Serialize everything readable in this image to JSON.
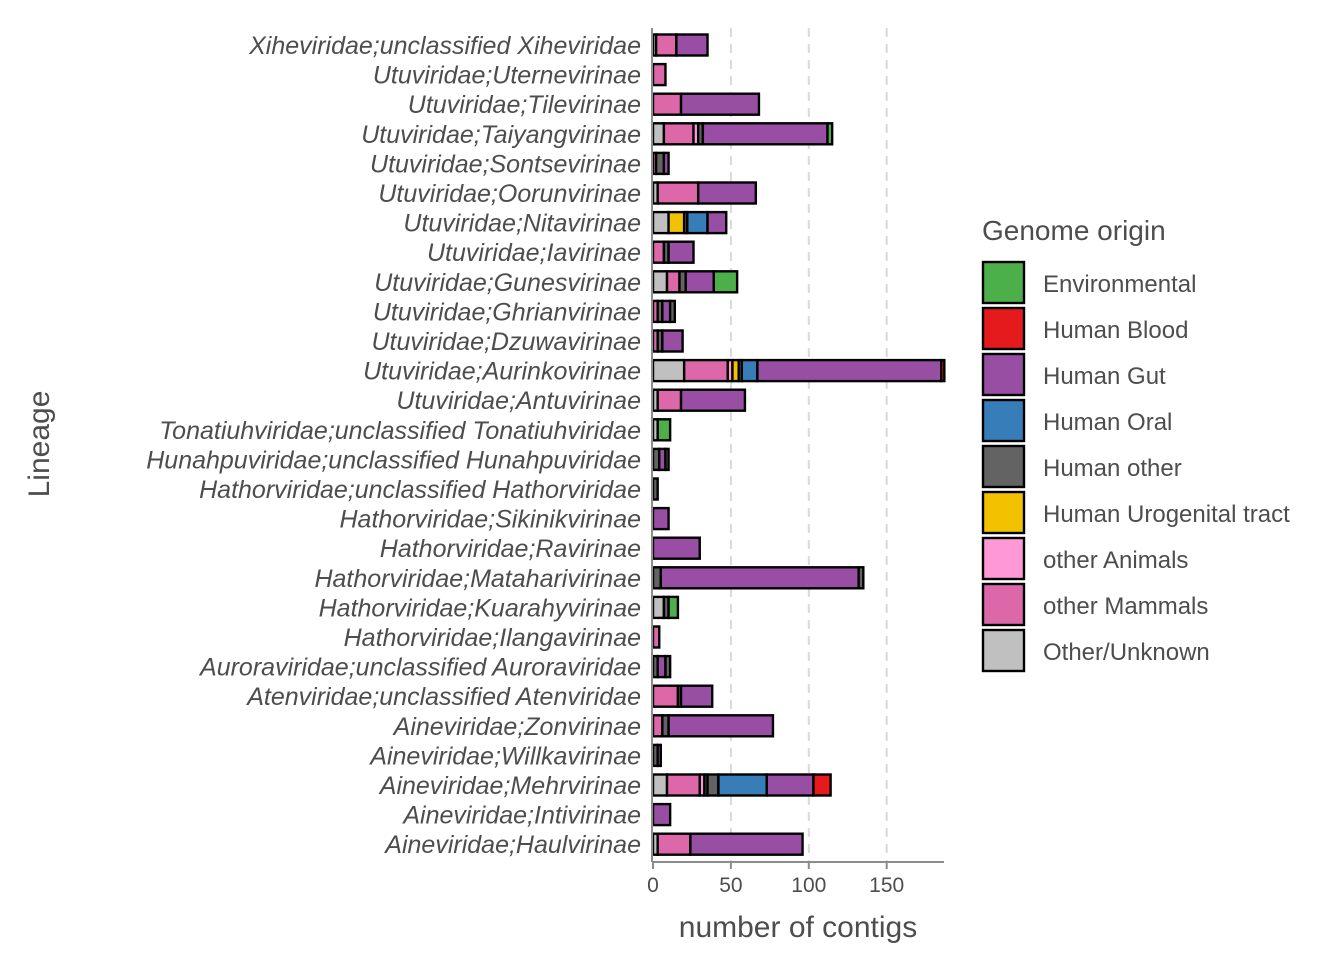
{
  "chart_data": {
    "type": "bar",
    "orientation": "horizontal",
    "stacked": true,
    "xlabel": "number of contigs",
    "ylabel": "Lineage",
    "xlim": [
      0,
      187
    ],
    "xticks": [
      0,
      50,
      100,
      150
    ],
    "grid": "vertical dashed major lines",
    "legend": {
      "title": "Genome origin",
      "position": "right",
      "entries": [
        {
          "name": "Environmental",
          "color": "#4daf4a"
        },
        {
          "name": "Human Blood",
          "color": "#e41a1c"
        },
        {
          "name": "Human Gut",
          "color": "#984ea3"
        },
        {
          "name": "Human Oral",
          "color": "#377eb8"
        },
        {
          "name": "Human other",
          "color": "#636363"
        },
        {
          "name": "Human Urogenital tract",
          "color": "#f2c200"
        },
        {
          "name": "other Animals",
          "color": "#ff99d5"
        },
        {
          "name": "other Mammals",
          "color": "#dc68aa"
        },
        {
          "name": "Other/Unknown",
          "color": "#c0c0c0"
        }
      ]
    },
    "categories": [
      {
        "name": "Xiheviridae;unclassified Xiheviridae",
        "segments": [
          {
            "origin": "Other/Unknown",
            "value": 2
          },
          {
            "origin": "other Mammals",
            "value": 13
          },
          {
            "origin": "Human Gut",
            "value": 20
          }
        ]
      },
      {
        "name": "Utuviridae;Uternevirinae",
        "segments": [
          {
            "origin": "other Mammals",
            "value": 8
          }
        ]
      },
      {
        "name": "Utuviridae;Tilevirinae",
        "segments": [
          {
            "origin": "other Mammals",
            "value": 18
          },
          {
            "origin": "Human Gut",
            "value": 50
          }
        ]
      },
      {
        "name": "Utuviridae;Taiyangvirinae",
        "segments": [
          {
            "origin": "Other/Unknown",
            "value": 7
          },
          {
            "origin": "other Mammals",
            "value": 19
          },
          {
            "origin": "other Animals",
            "value": 3
          },
          {
            "origin": "Human other",
            "value": 3
          },
          {
            "origin": "Human Gut",
            "value": 80
          },
          {
            "origin": "Environmental",
            "value": 3
          }
        ]
      },
      {
        "name": "Utuviridae;Sontsevirinae",
        "segments": [
          {
            "origin": "other Mammals",
            "value": 2
          },
          {
            "origin": "Human other",
            "value": 5
          },
          {
            "origin": "Human Gut",
            "value": 3
          }
        ]
      },
      {
        "name": "Utuviridae;Oorunvirinae",
        "segments": [
          {
            "origin": "Other/Unknown",
            "value": 3
          },
          {
            "origin": "other Mammals",
            "value": 26
          },
          {
            "origin": "Human Gut",
            "value": 37
          }
        ]
      },
      {
        "name": "Utuviridae;Nitavirinae",
        "segments": [
          {
            "origin": "Other/Unknown",
            "value": 10
          },
          {
            "origin": "Human Urogenital tract",
            "value": 10
          },
          {
            "origin": "Human other",
            "value": 2
          },
          {
            "origin": "Human Oral",
            "value": 13
          },
          {
            "origin": "Human Gut",
            "value": 12
          }
        ]
      },
      {
        "name": "Utuviridae;Iavirinae",
        "segments": [
          {
            "origin": "other Mammals",
            "value": 7
          },
          {
            "origin": "Human other",
            "value": 3
          },
          {
            "origin": "Human Gut",
            "value": 16
          }
        ]
      },
      {
        "name": "Utuviridae;Gunesvirinae",
        "segments": [
          {
            "origin": "Other/Unknown",
            "value": 9
          },
          {
            "origin": "other Mammals",
            "value": 8
          },
          {
            "origin": "Human other",
            "value": 4
          },
          {
            "origin": "Human Gut",
            "value": 18
          },
          {
            "origin": "Environmental",
            "value": 15
          }
        ]
      },
      {
        "name": "Utuviridae;Ghrianvirinae",
        "segments": [
          {
            "origin": "other Mammals",
            "value": 3
          },
          {
            "origin": "Human other",
            "value": 3
          },
          {
            "origin": "Human Gut",
            "value": 5
          },
          {
            "origin": "Human other",
            "value": 3
          }
        ]
      },
      {
        "name": "Utuviridae;Dzuwavirinae",
        "segments": [
          {
            "origin": "other Mammals",
            "value": 3
          },
          {
            "origin": "Human other",
            "value": 3
          },
          {
            "origin": "Human Gut",
            "value": 13
          }
        ]
      },
      {
        "name": "Utuviridae;Aurinkovirinae",
        "segments": [
          {
            "origin": "Other/Unknown",
            "value": 20
          },
          {
            "origin": "other Mammals",
            "value": 28
          },
          {
            "origin": "other Animals",
            "value": 3
          },
          {
            "origin": "Human Urogenital tract",
            "value": 4
          },
          {
            "origin": "Human other",
            "value": 2
          },
          {
            "origin": "Human Oral",
            "value": 10
          },
          {
            "origin": "Human Gut",
            "value": 118
          },
          {
            "origin": "Human Blood",
            "value": 2
          }
        ]
      },
      {
        "name": "Utuviridae;Antuvirinae",
        "segments": [
          {
            "origin": "Other/Unknown",
            "value": 3
          },
          {
            "origin": "other Mammals",
            "value": 15
          },
          {
            "origin": "Human Gut",
            "value": 41
          }
        ]
      },
      {
        "name": "Tonatiuhviridae;unclassified Tonatiuhviridae",
        "segments": [
          {
            "origin": "Other/Unknown",
            "value": 3
          },
          {
            "origin": "Environmental",
            "value": 8
          }
        ]
      },
      {
        "name": "Hunahpuviridae;unclassified Hunahpuviridae",
        "segments": [
          {
            "origin": "Human other",
            "value": 4
          },
          {
            "origin": "Human Gut",
            "value": 4
          },
          {
            "origin": "Human other",
            "value": 2
          }
        ]
      },
      {
        "name": "Hathorviridae;unclassified Hathorviridae",
        "segments": [
          {
            "origin": "Human other",
            "value": 3
          }
        ]
      },
      {
        "name": "Hathorviridae;Sikinikvirinae",
        "segments": [
          {
            "origin": "Human Gut",
            "value": 10
          }
        ]
      },
      {
        "name": "Hathorviridae;Ravirinae",
        "segments": [
          {
            "origin": "Human Gut",
            "value": 30
          }
        ]
      },
      {
        "name": "Hathorviridae;Mataharivirinae",
        "segments": [
          {
            "origin": "Human other",
            "value": 5
          },
          {
            "origin": "Human Gut",
            "value": 127
          },
          {
            "origin": "Human other",
            "value": 3
          }
        ]
      },
      {
        "name": "Hathorviridae;Kuarahyvirinae",
        "segments": [
          {
            "origin": "Other/Unknown",
            "value": 7
          },
          {
            "origin": "Human other",
            "value": 3
          },
          {
            "origin": "Environmental",
            "value": 6
          }
        ]
      },
      {
        "name": "Hathorviridae;Ilangavirinae",
        "segments": [
          {
            "origin": "other Mammals",
            "value": 4
          }
        ]
      },
      {
        "name": "Auroraviridae;unclassified Auroraviridae",
        "segments": [
          {
            "origin": "Human other",
            "value": 3
          },
          {
            "origin": "Human Gut",
            "value": 5
          },
          {
            "origin": "Human other",
            "value": 3
          }
        ]
      },
      {
        "name": "Atenviridae;unclassified Atenviridae",
        "segments": [
          {
            "origin": "other Mammals",
            "value": 16
          },
          {
            "origin": "Human other",
            "value": 2
          },
          {
            "origin": "Human Gut",
            "value": 20
          }
        ]
      },
      {
        "name": "Aineviridae;Zonvirinae",
        "segments": [
          {
            "origin": "other Mammals",
            "value": 6
          },
          {
            "origin": "Human other",
            "value": 4
          },
          {
            "origin": "Human Gut",
            "value": 67
          }
        ]
      },
      {
        "name": "Aineviridae;Willkavirinae",
        "segments": [
          {
            "origin": "Human other",
            "value": 3
          },
          {
            "origin": "Human Gut",
            "value": 2
          }
        ]
      },
      {
        "name": "Aineviridae;Mehrvirinae",
        "segments": [
          {
            "origin": "Other/Unknown",
            "value": 9
          },
          {
            "origin": "other Mammals",
            "value": 21
          },
          {
            "origin": "other Animals",
            "value": 3
          },
          {
            "origin": "Human other",
            "value": 2
          },
          {
            "origin": "Human other",
            "value": 7
          },
          {
            "origin": "Human Oral",
            "value": 31
          },
          {
            "origin": "Human Gut",
            "value": 30
          },
          {
            "origin": "Human Blood",
            "value": 11
          }
        ]
      },
      {
        "name": "Aineviridae;Intivirinae",
        "segments": [
          {
            "origin": "Human Gut",
            "value": 11
          }
        ]
      },
      {
        "name": "Aineviridae;Haulvirinae",
        "segments": [
          {
            "origin": "Other/Unknown",
            "value": 3
          },
          {
            "origin": "other Mammals",
            "value": 21
          },
          {
            "origin": "Human Gut",
            "value": 72
          }
        ]
      }
    ]
  }
}
